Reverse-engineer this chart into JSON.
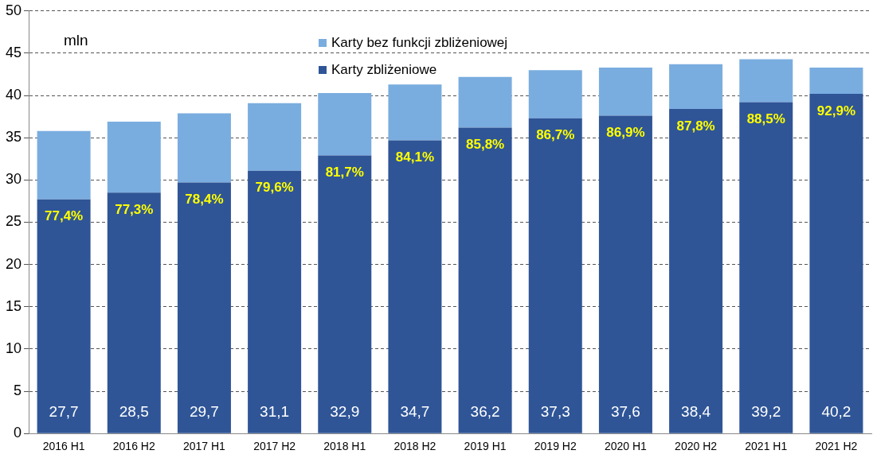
{
  "chart_data": {
    "type": "bar",
    "stacked": true,
    "ylabel": "mln",
    "categories": [
      "2016 H1",
      "2016 H2",
      "2017 H1",
      "2017 H2",
      "2018 H1",
      "2018 H2",
      "2019 H1",
      "2019 H2",
      "2020 H1",
      "2020 H2",
      "2021 H1",
      "2021 H2"
    ],
    "series": [
      {
        "name": "Karty zbliżeniowe",
        "color": "#2f5597",
        "values": [
          27.7,
          28.5,
          29.7,
          31.1,
          32.9,
          34.7,
          36.2,
          37.3,
          37.6,
          38.4,
          39.2,
          40.2
        ],
        "value_labels": [
          "27,7",
          "28,5",
          "29,7",
          "31,1",
          "32,9",
          "34,7",
          "36,2",
          "37,3",
          "37,6",
          "38,4",
          "39,2",
          "40,2"
        ]
      },
      {
        "name": "Karty bez funkcji zbliżeniowej",
        "color": "#7aaddf",
        "values": [
          8.1,
          8.4,
          8.2,
          8.0,
          7.4,
          6.6,
          6.0,
          5.7,
          5.7,
          5.3,
          5.1,
          3.1
        ]
      }
    ],
    "annotations": [
      {
        "text": "77,4%",
        "x": "2016 H1",
        "y": 27.7
      },
      {
        "text": "77,3%",
        "x": "2016 H2",
        "y": 28.5
      },
      {
        "text": "78,4%",
        "x": "2017 H1",
        "y": 29.7
      },
      {
        "text": "79,6%",
        "x": "2017 H2",
        "y": 31.1
      },
      {
        "text": "81,7%",
        "x": "2018 H1",
        "y": 32.9
      },
      {
        "text": "84,1%",
        "x": "2018 H2",
        "y": 34.7
      },
      {
        "text": "85,8%",
        "x": "2019 H1",
        "y": 36.2
      },
      {
        "text": "86,7%",
        "x": "2019 H2",
        "y": 37.3
      },
      {
        "text": "86,9%",
        "x": "2020 H1",
        "y": 37.6
      },
      {
        "text": "87,8%",
        "x": "2020 H2",
        "y": 38.4
      },
      {
        "text": "88,5%",
        "x": "2021 H1",
        "y": 39.2
      },
      {
        "text": "92,9%",
        "x": "2021 H2",
        "y": 40.2
      }
    ],
    "ylim": [
      0,
      50
    ],
    "yticks": [
      0,
      5,
      10,
      15,
      20,
      25,
      30,
      35,
      40,
      45,
      50
    ],
    "grid": "y",
    "legend": "top"
  }
}
